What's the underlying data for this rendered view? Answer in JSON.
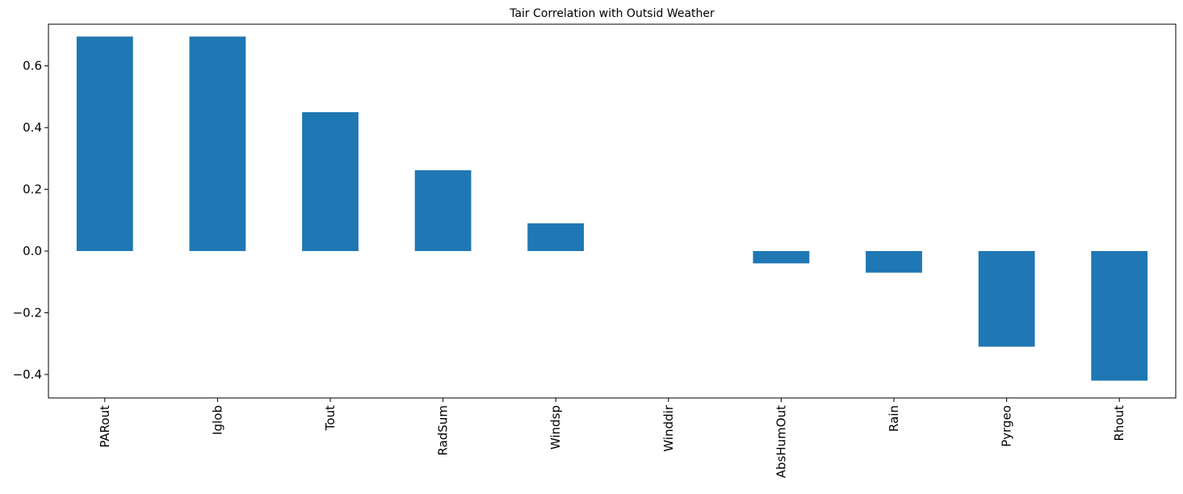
{
  "chart_data": {
    "type": "bar",
    "title": "Tair Correlation with Outsid Weather",
    "xlabel": "",
    "ylabel": "",
    "categories": [
      "PARout",
      "Iglob",
      "Tout",
      "RadSum",
      "Windsp",
      "Winddir",
      "AbsHumOut",
      "Rain",
      "Pyrgeo",
      "Rhout"
    ],
    "values": [
      0.695,
      0.695,
      0.45,
      0.262,
      0.09,
      0.0,
      -0.04,
      -0.07,
      -0.31,
      -0.42
    ],
    "ylim": [
      -0.476,
      0.735
    ],
    "yticks": [
      -0.4,
      -0.2,
      0.0,
      0.2,
      0.4,
      0.6
    ],
    "ytick_labels": [
      "−0.4",
      "−0.2",
      "0.0",
      "0.2",
      "0.4",
      "0.6"
    ],
    "grid": false,
    "bar_color": "#1f77b4"
  }
}
